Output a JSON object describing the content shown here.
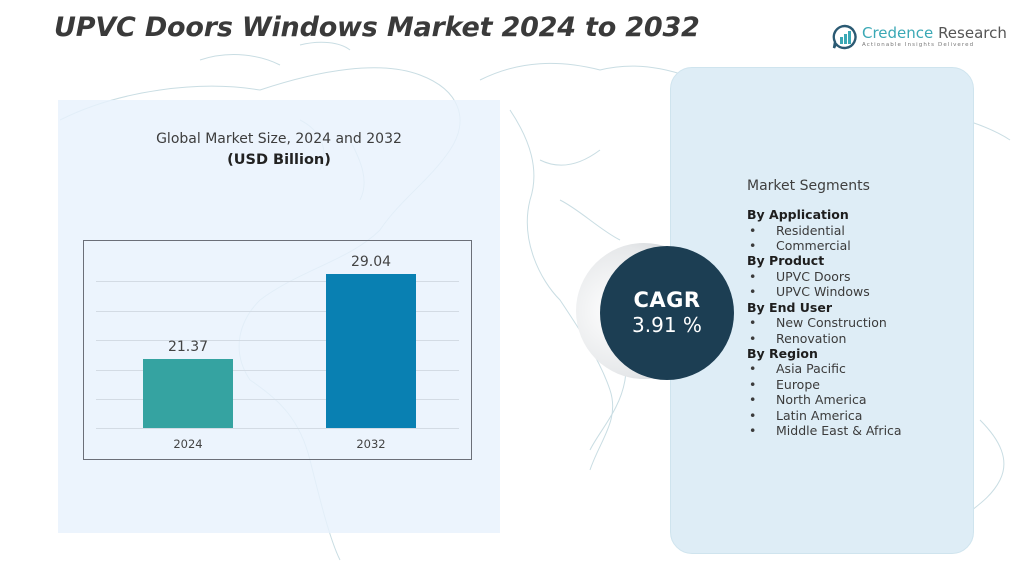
{
  "header": {
    "title": "UPVC Doors Windows Market 2024 to 2032",
    "logo": {
      "icon": "bar-chart-speech-bubble-icon",
      "name_part1": "Credence",
      "name_part2": "Research",
      "tagline": "Actionable Insights Delivered",
      "accent_color": "#3aa8b5"
    }
  },
  "chart_panel": {
    "title": "Global Market Size, 2024 and 2032",
    "unit": "(USD Billion)"
  },
  "chart_data": {
    "type": "bar",
    "title": "Global Market Size, 2024 and 2032",
    "subtitle": "(USD Billion)",
    "categories": [
      "2024",
      "2032"
    ],
    "values": [
      21.37,
      29.04
    ],
    "value_labels": [
      "21.37",
      "29.04"
    ],
    "colors": [
      "#35a3a1",
      "#0980b2"
    ],
    "xlabel": "",
    "ylabel": "USD Billion",
    "grid": true,
    "legend": "none"
  },
  "cagr": {
    "label": "CAGR",
    "value": "3.91 %",
    "color": "#1c3e53"
  },
  "segments": {
    "title": "Market Segments",
    "groups": [
      {
        "label": "By Application",
        "items": [
          "Residential",
          "Commercial"
        ]
      },
      {
        "label": "By  Product",
        "items": [
          "UPVC Doors",
          "UPVC Windows"
        ]
      },
      {
        "label": "By End User",
        "items": [
          "New Construction",
          "Renovation"
        ]
      },
      {
        "label": "By Region",
        "items": [
          "Asia Pacific",
          "Europe",
          "North America",
          "Latin America",
          "Middle East & Africa"
        ]
      }
    ],
    "bullet": "•"
  }
}
